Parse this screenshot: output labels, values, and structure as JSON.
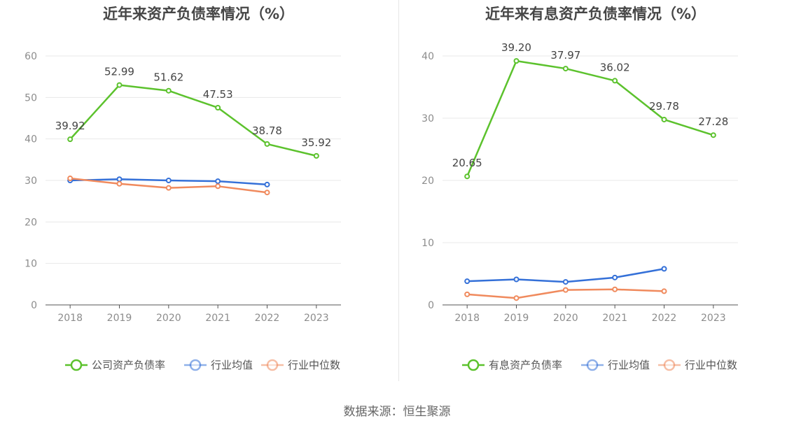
{
  "source_label": "数据来源：恒生聚源",
  "colors": {
    "company": "#5cc22d",
    "industry_avg": "#3470d8",
    "industry_median": "#f08a5d",
    "grid": "#e8e8e8",
    "axis": "#555555"
  },
  "chart_data": [
    {
      "type": "line",
      "title": "近年来资产负债率情况（%）",
      "categories": [
        "2018",
        "2019",
        "2020",
        "2021",
        "2022",
        "2023"
      ],
      "ylim": [
        0,
        60
      ],
      "yticks": [
        0,
        10,
        20,
        30,
        40,
        50,
        60
      ],
      "grid": true,
      "legend_position": "bottom",
      "series": [
        {
          "name": "公司资产负债率",
          "values": [
            39.92,
            52.99,
            51.62,
            47.53,
            38.78,
            35.92
          ],
          "labels": [
            "39.92",
            "52.99",
            "51.62",
            "47.53",
            "38.78",
            "35.92"
          ]
        },
        {
          "name": "行业均值",
          "values": [
            30.0,
            30.3,
            30.0,
            29.8,
            29.0,
            null
          ]
        },
        {
          "name": "行业中位数",
          "values": [
            30.5,
            29.2,
            28.2,
            28.6,
            27.1,
            null
          ]
        }
      ]
    },
    {
      "type": "line",
      "title": "近年来有息资产负债率情况（%）",
      "categories": [
        "2018",
        "2019",
        "2020",
        "2021",
        "2022",
        "2023"
      ],
      "ylim": [
        0,
        40
      ],
      "yticks": [
        0,
        10,
        20,
        30,
        40
      ],
      "grid": true,
      "legend_position": "bottom",
      "series": [
        {
          "name": "有息资产负债率",
          "values": [
            20.65,
            39.2,
            37.97,
            36.02,
            29.78,
            27.28
          ],
          "labels": [
            "20.65",
            "39.20",
            "37.97",
            "36.02",
            "29.78",
            "27.28"
          ]
        },
        {
          "name": "行业均值",
          "values": [
            3.8,
            4.1,
            3.7,
            4.4,
            5.8,
            null
          ]
        },
        {
          "name": "行业中位数",
          "values": [
            1.7,
            1.1,
            2.4,
            2.5,
            2.2,
            null
          ]
        }
      ]
    }
  ]
}
